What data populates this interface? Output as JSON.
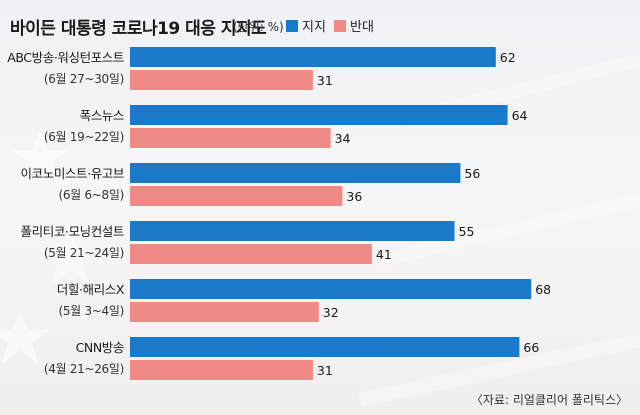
{
  "header": {
    "title": "바이든 대통령 코로나19 대응 지지도",
    "unit": "(단위: %)"
  },
  "source": "〈자료: 리얼클리어 폴리틱스〉",
  "colors": {
    "support": "#1a79c9",
    "oppose": "#f08a87",
    "label": "#1a1a1a"
  },
  "chart_data": {
    "type": "bar",
    "orientation": "horizontal",
    "categories": [
      {
        "name": "ABC방송·워싱턴포스트",
        "period": "(6월 27~30일)"
      },
      {
        "name": "폭스뉴스",
        "period": "(6월 19~22일)"
      },
      {
        "name": "이코노미스트·유고브",
        "period": "(6월 6~8일)"
      },
      {
        "name": "폴리티코·모닝컨설트",
        "period": "(5월 21~24일)"
      },
      {
        "name": "더힐·해리스X",
        "period": "(5월 3~4일)"
      },
      {
        "name": "CNN방송",
        "period": "(4월 21~26일)"
      }
    ],
    "series": [
      {
        "name": "지지",
        "values": [
          62,
          64,
          56,
          55,
          68,
          66
        ]
      },
      {
        "name": "반대",
        "values": [
          31,
          34,
          36,
          41,
          32,
          31
        ]
      }
    ],
    "xlim": [
      0,
      70
    ],
    "grid": false,
    "legend": "top"
  }
}
